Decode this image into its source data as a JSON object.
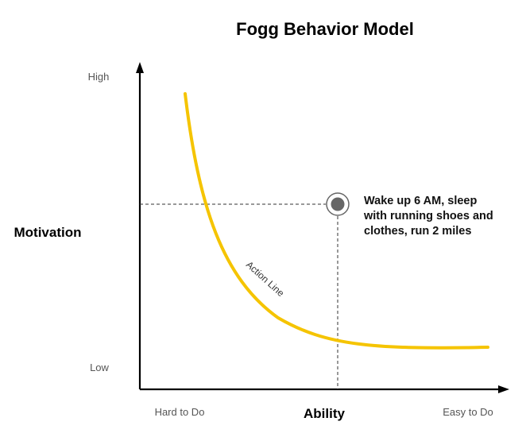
{
  "title": "Fogg Behavior Model",
  "y_axis": {
    "label": "Motivation",
    "high_label": "High",
    "low_label": "Low"
  },
  "x_axis": {
    "label": "Ability",
    "low_label": "Hard to Do",
    "high_label": "Easy to Do"
  },
  "curve": {
    "label": "Action Line",
    "color": "#F5C400"
  },
  "behavior": {
    "lines": [
      "Wake up 6 AM, sleep",
      "with running shoes and",
      "clothes, run 2 miles"
    ],
    "marker_color": "#666666"
  },
  "colors": {
    "axis": "#000000",
    "guide": "#333333"
  }
}
